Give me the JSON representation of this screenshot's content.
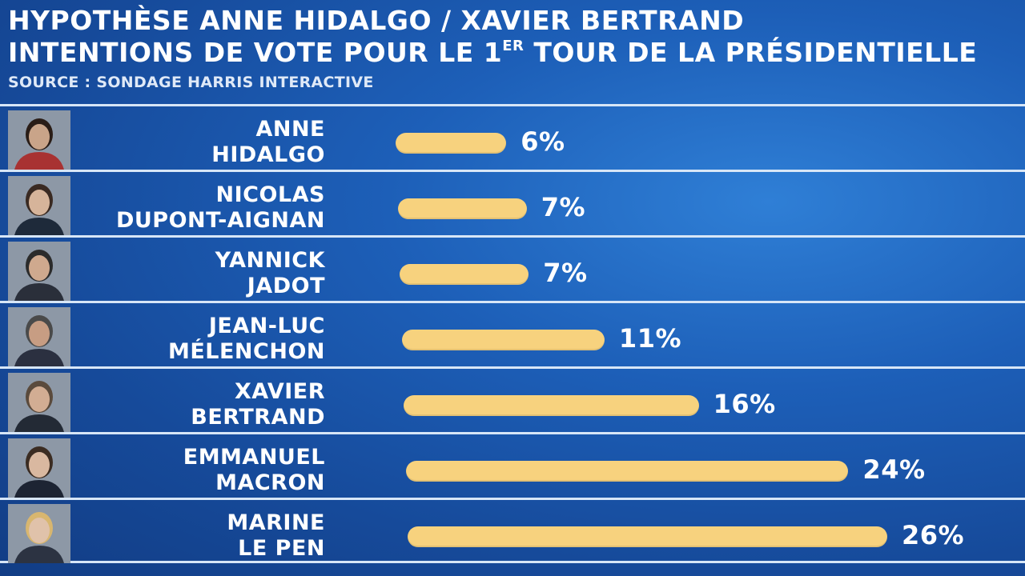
{
  "header": {
    "title_line1": "HYPOTHÈSE ANNE HIDALGO / XAVIER BERTRAND",
    "title_line2_prefix": "INTENTIONS DE VOTE POUR LE 1",
    "title_line2_sup": "ER",
    "title_line2_suffix": " TOUR DE LA PRÉSIDENTIELLE",
    "source": "SOURCE : SONDAGE HARRIS INTERACTIVE"
  },
  "colors": {
    "background": "#1d5fb8",
    "bar": "#f7d27e",
    "text": "#ffffff",
    "divider": "#d7e6f7"
  },
  "chart_data": {
    "type": "bar",
    "orientation": "horizontal",
    "categories": [
      [
        "ANNE",
        "HIDALGO"
      ],
      [
        "NICOLAS",
        "DUPONT-AIGNAN"
      ],
      [
        "YANNICK",
        "JADOT"
      ],
      [
        "JEAN-LUC",
        "MÉLENCHON"
      ],
      [
        "XAVIER",
        "BERTRAND"
      ],
      [
        "EMMANUEL",
        "MACRON"
      ],
      [
        "MARINE",
        "LE PEN"
      ]
    ],
    "values": [
      6,
      7,
      7,
      11,
      16,
      24,
      26
    ],
    "labels": [
      "6%",
      "7%",
      "7%",
      "11%",
      "16%",
      "24%",
      "26%"
    ],
    "unit": "%",
    "xlim": [
      0,
      26
    ],
    "grid": false,
    "legend": "none"
  }
}
